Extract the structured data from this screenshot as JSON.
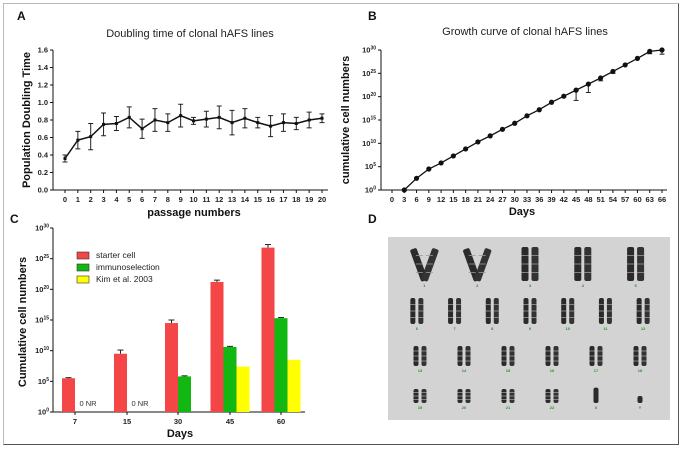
{
  "panels": {
    "A": {
      "label": "A"
    },
    "B": {
      "label": "B"
    },
    "C": {
      "label": "C"
    },
    "D": {
      "label": "D"
    }
  },
  "chart_data": [
    {
      "id": "A",
      "type": "line",
      "title": "Doubling time of clonal hAFS lines",
      "xlabel": "passage numbers",
      "ylabel": "Population Doubling Time",
      "x": [
        0,
        1,
        2,
        3,
        4,
        5,
        6,
        7,
        8,
        9,
        10,
        11,
        12,
        13,
        14,
        15,
        16,
        17,
        18,
        19,
        20
      ],
      "values": [
        0.36,
        0.57,
        0.61,
        0.75,
        0.76,
        0.83,
        0.7,
        0.8,
        0.77,
        0.85,
        0.79,
        0.81,
        0.83,
        0.77,
        0.82,
        0.77,
        0.73,
        0.77,
        0.76,
        0.8,
        0.82
      ],
      "errors": [
        0.04,
        0.1,
        0.15,
        0.13,
        0.08,
        0.12,
        0.11,
        0.13,
        0.1,
        0.13,
        0.04,
        0.09,
        0.13,
        0.14,
        0.11,
        0.06,
        0.12,
        0.1,
        0.07,
        0.09,
        0.05
      ],
      "ylim": [
        0,
        1.6
      ],
      "yticks": [
        "0.0",
        "0.2",
        "0.4",
        "0.6",
        "0.8",
        "1.0",
        "1.2",
        "1.4",
        "1.6"
      ],
      "xticks": [
        "0",
        "1",
        "2",
        "3",
        "4",
        "5",
        "6",
        "7",
        "8",
        "9",
        "10",
        "11",
        "12",
        "13",
        "14",
        "15",
        "16",
        "17",
        "18",
        "19",
        "20"
      ]
    },
    {
      "id": "B",
      "type": "line",
      "title": "Growth curve of clonal hAFS lines",
      "xlabel": "Days",
      "ylabel": "cumulative cell numbers",
      "yscale": "log10",
      "x": [
        3,
        6,
        9,
        12,
        15,
        18,
        21,
        24,
        27,
        30,
        33,
        36,
        39,
        42,
        45,
        48,
        51,
        54,
        57,
        60,
        63,
        66
      ],
      "log10_values": [
        0,
        2.5,
        4.5,
        5.8,
        7.3,
        8.8,
        10.3,
        11.6,
        13.0,
        14.3,
        15.9,
        17.2,
        18.8,
        20.1,
        21.4,
        22.7,
        24.0,
        25.4,
        26.8,
        28.2,
        29.7,
        31.0
      ],
      "log10_error_low": [
        0,
        0,
        0,
        0,
        0,
        0,
        0,
        0,
        0,
        0,
        0,
        0,
        0,
        0,
        2.2,
        1.8,
        0.6,
        0.4,
        0,
        0,
        0.5,
        0.9
      ],
      "ylim_log10": [
        0,
        30
      ],
      "ytick_exponents": [
        "0",
        "5",
        "10",
        "15",
        "20",
        "25",
        "30"
      ],
      "xticks": [
        "0",
        "3",
        "6",
        "9",
        "12",
        "15",
        "18",
        "21",
        "24",
        "27",
        "30",
        "33",
        "36",
        "39",
        "42",
        "45",
        "48",
        "51",
        "54",
        "57",
        "60",
        "63",
        "66"
      ]
    },
    {
      "id": "C",
      "type": "bar",
      "xlabel": "Days",
      "ylabel": "Cumulative cell numbers",
      "yscale": "log10",
      "categories": [
        "7",
        "15",
        "30",
        "45",
        "60"
      ],
      "series": [
        {
          "name": "starter cell",
          "color": "#f44646",
          "log10_values": [
            5.5,
            9.5,
            14.5,
            21.2,
            26.8
          ],
          "log10_error": [
            0.1,
            0.6,
            0.5,
            0.3,
            0.5
          ]
        },
        {
          "name": "immunoselection",
          "color": "#12b712",
          "log10_values": [
            null,
            null,
            5.8,
            10.6,
            15.3
          ],
          "log10_error": [
            0,
            0,
            0.1,
            0.1,
            0.1
          ]
        },
        {
          "name": "Kim et al. 2003",
          "color": "#ffff00",
          "log10_values": [
            null,
            null,
            null,
            7.4,
            8.5
          ],
          "log10_error": [
            0,
            0,
            0,
            0,
            0
          ]
        }
      ],
      "annotations": [
        {
          "category": "7",
          "text": "0  NR"
        },
        {
          "category": "15",
          "text": "0  NR"
        }
      ],
      "ylim_log10": [
        0,
        30
      ],
      "ytick_exponents": [
        "0",
        "5",
        "10",
        "15",
        "20",
        "25",
        "30"
      ],
      "legend_position": "top-left"
    }
  ],
  "karyotype": {
    "background": "#d3d3d3",
    "rows": [
      [
        "1",
        "2",
        "3",
        "4",
        "5"
      ],
      [
        "6",
        "7",
        "8",
        "9",
        "10",
        "11",
        "12"
      ],
      [
        "13",
        "14",
        "15",
        "16",
        "17",
        "18"
      ],
      [
        "19",
        "20",
        "21",
        "22",
        "X",
        "Y"
      ]
    ]
  }
}
